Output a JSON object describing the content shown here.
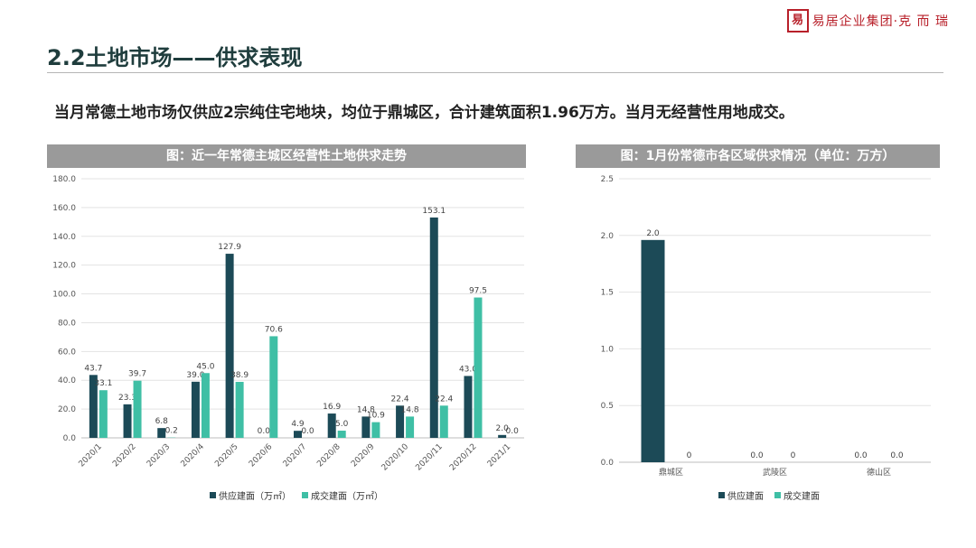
{
  "logo": {
    "seal": "易",
    "text": "易居企业集团·克 而 瑞"
  },
  "page": {
    "section_title": "2.2土地市场——供求表现",
    "summary": "当月常德土地市场仅供应2宗纯住宅地块，均位于鼎城区，合计建筑面积1.96万方。当月无经营性用地成交。"
  },
  "colors": {
    "supply": "#1c4a57",
    "deal": "#3fbfa5",
    "header_bg": "#9a9a9a"
  },
  "chart_data": [
    {
      "type": "bar",
      "title": "图：近一年常德主城区经营性土地供求走势",
      "categories": [
        "2020/1",
        "2020/2",
        "2020/3",
        "2020/4",
        "2020/5",
        "2020/6",
        "2020/7",
        "2020/8",
        "2020/9",
        "2020/10",
        "2020/11",
        "2020/12",
        "2021/1"
      ],
      "series": [
        {
          "name": "供应建面（万㎡）",
          "values": [
            43.7,
            23.3,
            6.8,
            39.0,
            127.9,
            0.0,
            4.9,
            16.9,
            14.8,
            22.4,
            153.1,
            43.0,
            2.0
          ]
        },
        {
          "name": "成交建面（万㎡）",
          "values": [
            33.1,
            39.7,
            0.2,
            45.0,
            38.9,
            70.6,
            0.0,
            5.0,
            10.9,
            14.8,
            22.4,
            97.5,
            0.0
          ]
        }
      ],
      "ylim": [
        0,
        180
      ],
      "yticks": [
        "0.0",
        "20.0",
        "40.0",
        "60.0",
        "80.0",
        "100.0",
        "120.0",
        "140.0",
        "160.0",
        "180.0"
      ],
      "grid": true,
      "legend": "bottom"
    },
    {
      "type": "bar",
      "title": "图：1月份常德市各区域供求情况（单位：万方）",
      "categories": [
        "鼎城区",
        "武陵区",
        "德山区"
      ],
      "series": [
        {
          "name": "供应建面",
          "values": [
            1.96,
            0,
            0
          ],
          "labels": [
            "2.0",
            "0.0",
            "0.0"
          ]
        },
        {
          "name": "成交建面",
          "values": [
            0,
            0,
            0
          ],
          "labels": [
            "0",
            "0",
            "0.0"
          ]
        }
      ],
      "ylim": [
        0,
        2.5
      ],
      "yticks": [
        "0.0",
        "0.5",
        "1.0",
        "1.5",
        "2.0",
        "2.5"
      ],
      "grid": true,
      "legend": "bottom"
    }
  ]
}
